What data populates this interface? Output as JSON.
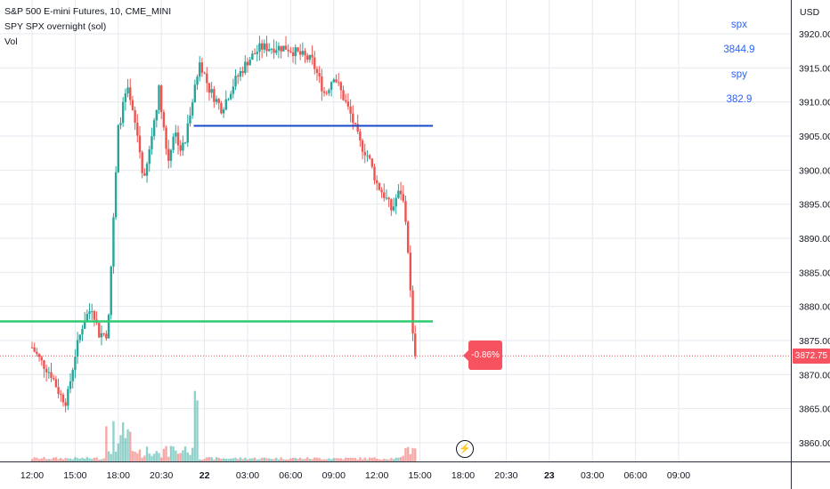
{
  "legend": {
    "symbol": "S&P 500 E-mini Futures, 10, CME_MINI",
    "indicator": "SPY SPX overnight (sol)",
    "volume": "Vol"
  },
  "side_labels": {
    "spx_label": "spx",
    "spx_value": "3844.9",
    "spy_label": "spy",
    "spy_value": "382.9"
  },
  "price_axis": {
    "currency": "USD",
    "last_price": "3872.75",
    "change_pct": "-0.86%"
  },
  "colors": {
    "up": "#26a69a",
    "down": "#ef5350",
    "blue_level": "#1848cc",
    "green_level": "#2ecc71",
    "grid": "#e6e9ef"
  },
  "chart_data": {
    "type": "candlestick",
    "title": "S&P 500 E-mini Futures, 10, CME_MINI",
    "ylabel": "USD",
    "ylim": [
      3857.5,
      3922.5
    ],
    "y_ticks": [
      3860,
      3865,
      3870,
      3875,
      3880,
      3885,
      3890,
      3895,
      3900,
      3905,
      3910,
      3915,
      3920
    ],
    "x_tick_labels": [
      "12:00",
      "15:00",
      "18:00",
      "20:30",
      "22",
      "03:00",
      "06:00",
      "09:00",
      "12:00",
      "15:00",
      "18:00",
      "20:30",
      "23",
      "03:00",
      "06:00",
      "09:00"
    ],
    "bold_x_ticks": [
      "22",
      "23"
    ],
    "horizontal_levels": [
      {
        "price": 3906.5,
        "color": "blue"
      },
      {
        "price": 3877.8,
        "color": "green"
      }
    ],
    "last_price": 3872.75,
    "path": [
      {
        "t": 0,
        "p": 3874
      },
      {
        "t": 0.2,
        "p": 3872
      },
      {
        "t": 0.45,
        "p": 3870
      },
      {
        "t": 0.65,
        "p": 3867
      },
      {
        "t": 0.8,
        "p": 3866
      },
      {
        "t": 1.0,
        "p": 3873
      },
      {
        "t": 1.2,
        "p": 3878
      },
      {
        "t": 1.4,
        "p": 3880
      },
      {
        "t": 1.55,
        "p": 3876
      },
      {
        "t": 1.75,
        "p": 3876
      },
      {
        "t": 1.85,
        "p": 3888
      },
      {
        "t": 2.0,
        "p": 3906
      },
      {
        "t": 2.2,
        "p": 3912
      },
      {
        "t": 2.45,
        "p": 3905
      },
      {
        "t": 2.6,
        "p": 3898
      },
      {
        "t": 2.75,
        "p": 3904
      },
      {
        "t": 2.95,
        "p": 3912
      },
      {
        "t": 3.15,
        "p": 3901
      },
      {
        "t": 3.3,
        "p": 3906
      },
      {
        "t": 3.45,
        "p": 3903
      },
      {
        "t": 3.55,
        "p": 3904
      },
      {
        "t": 3.7,
        "p": 3910
      },
      {
        "t": 3.9,
        "p": 3916
      },
      {
        "t": 4.1,
        "p": 3912
      },
      {
        "t": 4.4,
        "p": 3909
      },
      {
        "t": 4.7,
        "p": 3913
      },
      {
        "t": 5.0,
        "p": 3916
      },
      {
        "t": 5.3,
        "p": 3918
      },
      {
        "t": 5.6,
        "p": 3918
      },
      {
        "t": 5.9,
        "p": 3918
      },
      {
        "t": 6.2,
        "p": 3917
      },
      {
        "t": 6.5,
        "p": 3916
      },
      {
        "t": 6.8,
        "p": 3911
      },
      {
        "t": 7.0,
        "p": 3914
      },
      {
        "t": 7.2,
        "p": 3911
      },
      {
        "t": 7.4,
        "p": 3908
      },
      {
        "t": 7.6,
        "p": 3904
      },
      {
        "t": 7.8,
        "p": 3902
      },
      {
        "t": 8.0,
        "p": 3898
      },
      {
        "t": 8.2,
        "p": 3896
      },
      {
        "t": 8.35,
        "p": 3894
      },
      {
        "t": 8.45,
        "p": 3896
      },
      {
        "t": 8.55,
        "p": 3897
      },
      {
        "t": 8.65,
        "p": 3894
      },
      {
        "t": 8.75,
        "p": 3886
      },
      {
        "t": 8.82,
        "p": 3876
      },
      {
        "t": 8.9,
        "p": 3872.75
      }
    ]
  }
}
